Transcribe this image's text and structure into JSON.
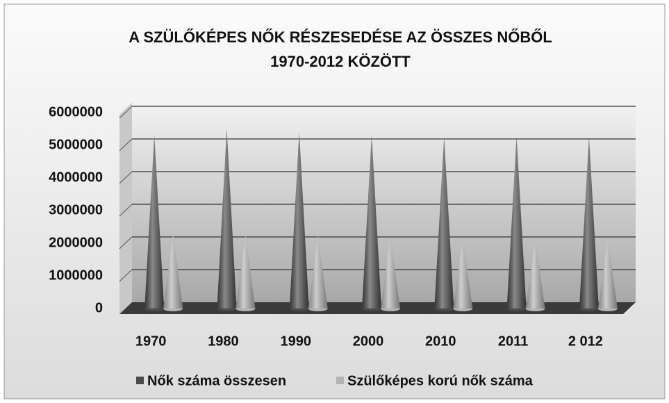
{
  "chart_data": {
    "type": "cone3d",
    "title": [
      "A SZÜLŐKÉPES NŐK RÉSZESEDÉSE AZ ÖSSZES NŐBŐL",
      "1970-2012 KÖZÖTT"
    ],
    "categories": [
      "1970",
      "1980",
      "1990",
      "2000",
      "2010",
      "2011",
      "2 012"
    ],
    "series": [
      {
        "name": "Nők száma összesen",
        "color": "#4a4a4a",
        "values": [
          5300000,
          5500000,
          5400000,
          5300000,
          5250000,
          5250000,
          5250000
        ]
      },
      {
        "name": "Szülőképes korú nők száma",
        "color": "#b4b4b4",
        "values": [
          2300000,
          2250000,
          2250000,
          2200000,
          2150000,
          2100000,
          2150000
        ]
      }
    ],
    "ylim": [
      0,
      6000000
    ],
    "yticks": [
      0,
      1000000,
      2000000,
      3000000,
      4000000,
      5000000,
      6000000
    ],
    "grid": true,
    "legend": "bottom"
  }
}
